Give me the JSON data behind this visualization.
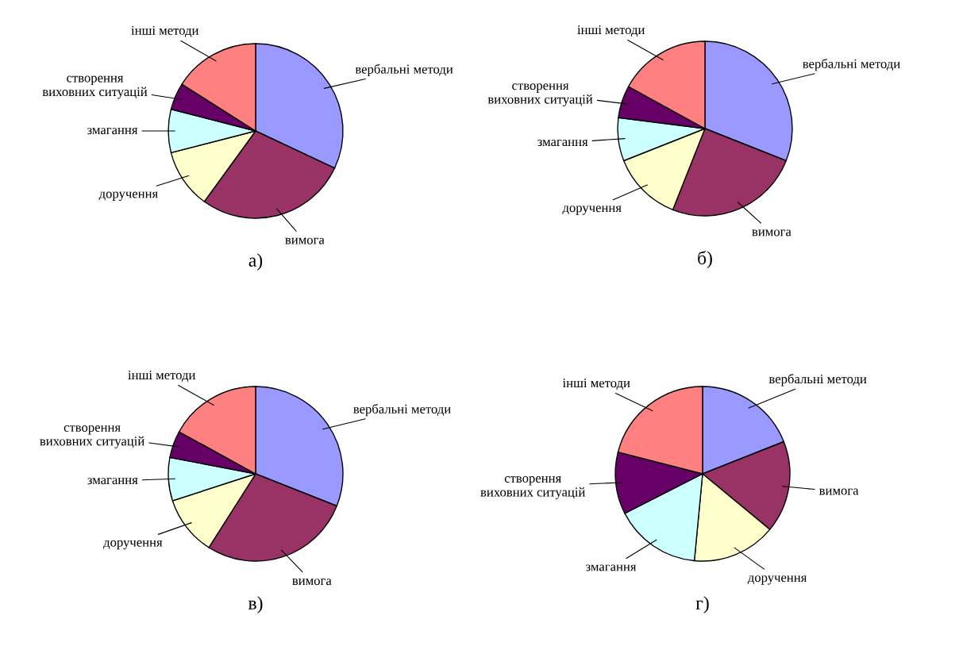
{
  "chart_data": [
    {
      "type": "pie",
      "title": "а)",
      "categories": [
        "вербальні методи",
        "вимога",
        "доручення",
        "змагання",
        "створення\nвиховних ситуацій",
        "інші методи"
      ],
      "values": [
        32,
        28,
        11,
        8,
        5,
        16
      ],
      "colors": [
        "#9999ff",
        "#993366",
        "#ffffcc",
        "#ccffff",
        "#660066",
        "#ff8080"
      ]
    },
    {
      "type": "pie",
      "title": "б)",
      "categories": [
        "вербальні методи",
        "вимога",
        "доручення",
        "змагання",
        "створення\nвиховних ситуацій",
        "інші методи"
      ],
      "values": [
        31,
        25,
        13,
        8,
        6,
        17
      ],
      "colors": [
        "#9999ff",
        "#993366",
        "#ffffcc",
        "#ccffff",
        "#660066",
        "#ff8080"
      ]
    },
    {
      "type": "pie",
      "title": "в)",
      "categories": [
        "вербальні методи",
        "вимога",
        "доручення",
        "змагання",
        "створення\nвиховних ситуацій",
        "інші методи"
      ],
      "values": [
        31,
        28,
        11,
        8,
        5,
        17
      ],
      "colors": [
        "#9999ff",
        "#993366",
        "#ffffcc",
        "#ccffff",
        "#660066",
        "#ff8080"
      ]
    },
    {
      "type": "pie",
      "title": "г)",
      "categories": [
        "вербальні методи",
        "вимога",
        "доручення",
        "змагання",
        "створення\nвиховних ситуацій",
        "інші методи"
      ],
      "values": [
        19,
        17,
        15.5,
        16,
        11.5,
        21
      ],
      "colors": [
        "#9999ff",
        "#993366",
        "#ffffcc",
        "#ccffff",
        "#660066",
        "#ff8080"
      ]
    }
  ]
}
